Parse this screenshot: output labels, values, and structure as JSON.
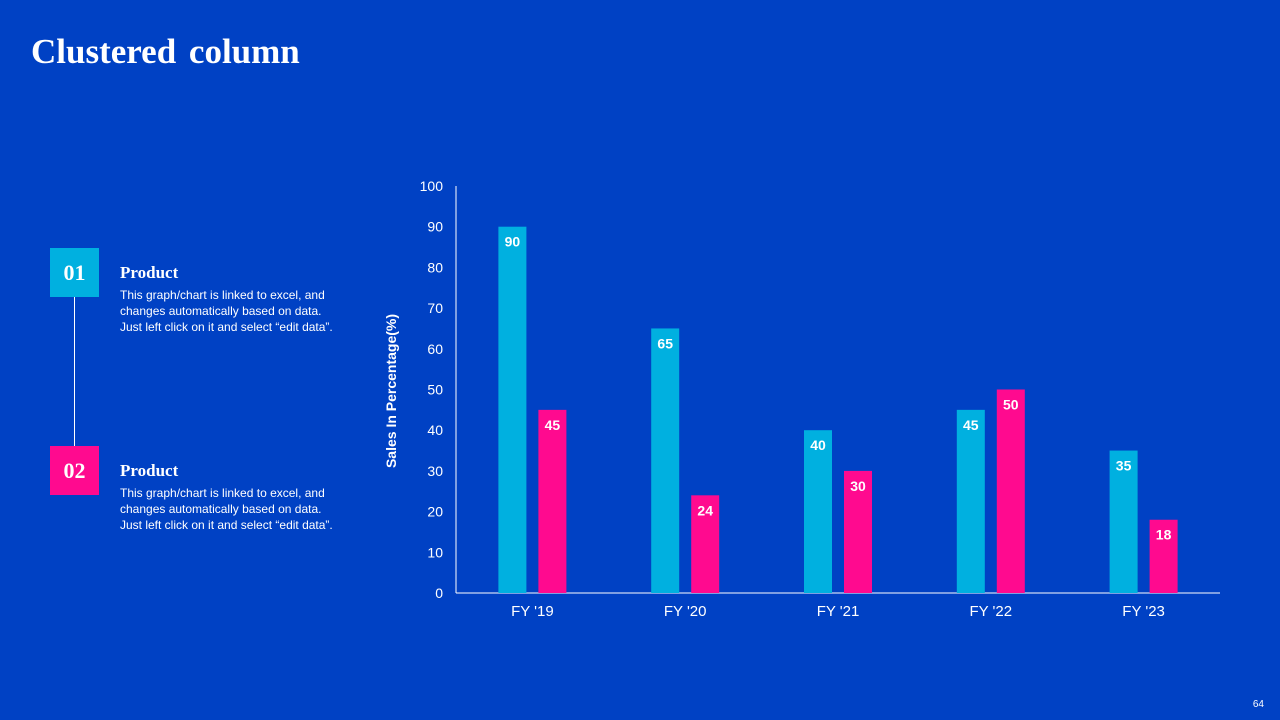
{
  "slide": {
    "title": "Clustered column",
    "page_number": "64"
  },
  "items": [
    {
      "number": "01",
      "heading": "Product",
      "description": "This graph/chart is linked to excel, and changes automatically based on data. Just left click on it and select “edit data”.",
      "color": "#00B0E0"
    },
    {
      "number": "02",
      "heading": "Product",
      "description": "This graph/chart is linked to excel, and changes automatically based on data. Just left click on it and select “edit data”.",
      "color": "#FF0A8F"
    }
  ],
  "chart_data": {
    "type": "bar",
    "title": "",
    "xlabel": "",
    "ylabel": "Sales In Percentage(%)",
    "categories": [
      "FY '19",
      "FY '20",
      "FY '21",
      "FY '22",
      "FY '23"
    ],
    "series": [
      {
        "values": [
          90,
          65,
          40,
          45,
          35
        ],
        "color": "#00B0E0"
      },
      {
        "values": [
          45,
          24,
          30,
          50,
          18
        ],
        "color": "#FF0A8F"
      }
    ],
    "ylim": [
      0,
      100
    ],
    "yticks": [
      0,
      10,
      20,
      30,
      40,
      50,
      60,
      70,
      80,
      90,
      100
    ],
    "grid": false,
    "legend": "none",
    "data_labels": true
  }
}
